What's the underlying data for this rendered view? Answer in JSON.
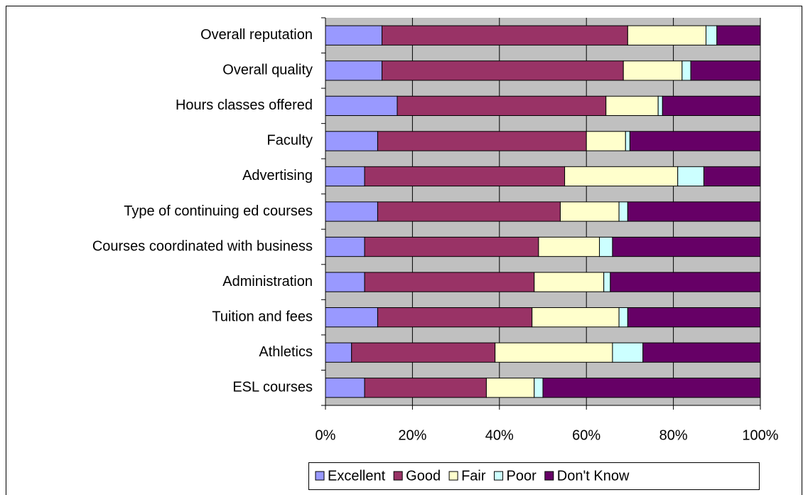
{
  "chart_data": {
    "type": "bar",
    "orientation": "horizontal",
    "stacked": true,
    "categories": [
      "Overall reputation",
      "Overall quality",
      "Hours classes offered",
      "Faculty",
      "Advertising",
      "Type of continuing ed courses",
      "Courses coordinated with business",
      "Administration",
      "Tuition and fees",
      "Athletics",
      "ESL courses"
    ],
    "series": [
      {
        "name": "Excellent",
        "color": "#9999ff",
        "values": [
          13,
          13,
          16.5,
          12,
          9,
          12,
          9,
          9,
          12,
          6,
          9
        ]
      },
      {
        "name": "Good",
        "color": "#993366",
        "values": [
          56.5,
          55.5,
          48,
          48,
          46,
          42,
          40,
          39,
          35.5,
          33,
          28
        ]
      },
      {
        "name": "Fair",
        "color": "#ffffcc",
        "values": [
          18,
          13.5,
          12,
          9,
          26,
          13.5,
          14,
          16,
          20,
          27,
          11
        ]
      },
      {
        "name": "Poor",
        "color": "#ccffff",
        "values": [
          2.5,
          2,
          1,
          1,
          6,
          2,
          3,
          1.5,
          2,
          7,
          2
        ]
      },
      {
        "name": "Don't Know",
        "color": "#660066",
        "values": [
          10,
          16,
          22.5,
          30,
          13,
          30.5,
          34,
          34.5,
          30.5,
          27,
          50
        ]
      }
    ],
    "xlim": [
      0,
      100
    ],
    "xticks": [
      {
        "value": 0,
        "label": "0%"
      },
      {
        "value": 20,
        "label": "20%"
      },
      {
        "value": 40,
        "label": "40%"
      },
      {
        "value": 60,
        "label": "60%"
      },
      {
        "value": 80,
        "label": "80%"
      },
      {
        "value": 100,
        "label": "100%"
      }
    ],
    "grid": true,
    "legend": "bottom"
  }
}
